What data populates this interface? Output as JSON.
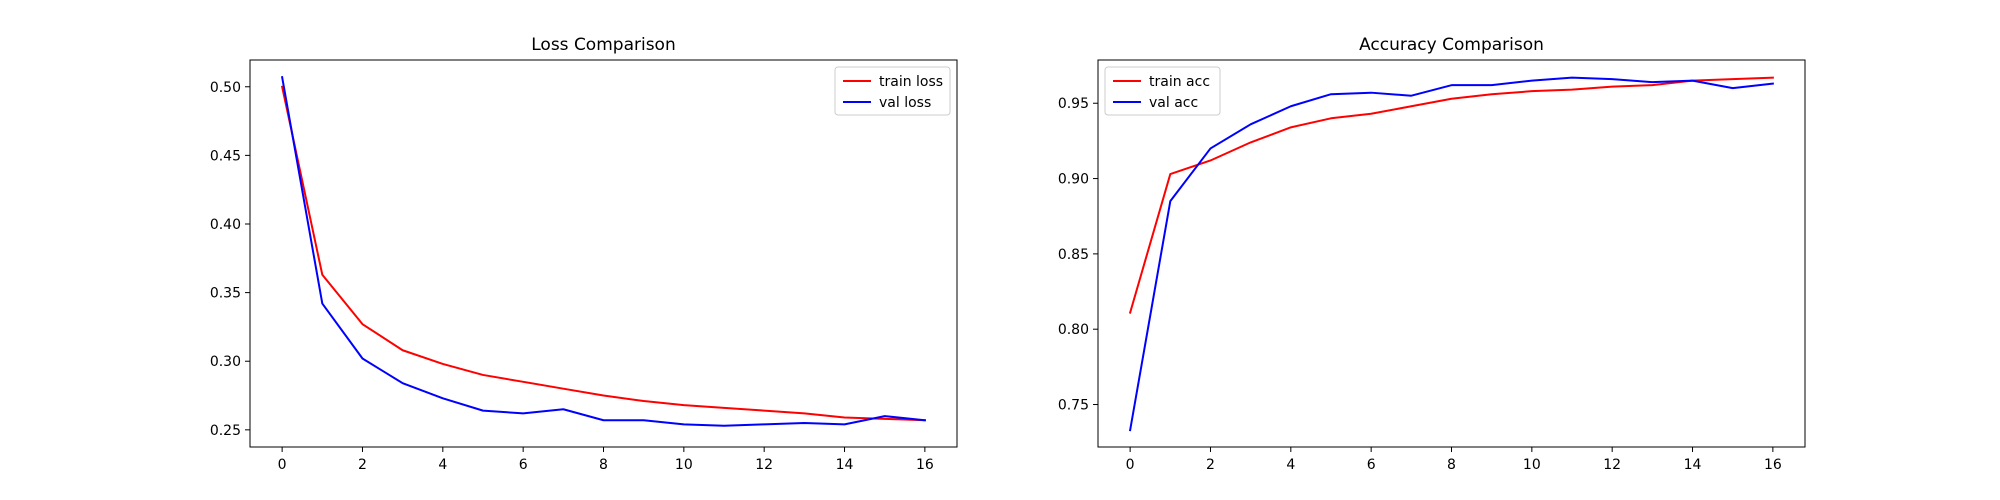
{
  "chart_data": [
    {
      "type": "line",
      "title": "Loss Comparison",
      "xlabel": "",
      "ylabel": "",
      "x": [
        0,
        1,
        2,
        3,
        4,
        5,
        6,
        7,
        8,
        9,
        10,
        11,
        12,
        13,
        14,
        15,
        16
      ],
      "series": [
        {
          "name": "train loss",
          "color": "#ff0000",
          "values": [
            0.5,
            0.363,
            0.327,
            0.308,
            0.298,
            0.29,
            0.285,
            0.28,
            0.275,
            0.271,
            0.268,
            0.266,
            0.264,
            0.262,
            0.259,
            0.258,
            0.257
          ]
        },
        {
          "name": "val loss",
          "color": "#0000ff",
          "values": [
            0.507,
            0.342,
            0.302,
            0.284,
            0.273,
            0.264,
            0.262,
            0.265,
            0.257,
            0.257,
            0.254,
            0.253,
            0.254,
            0.255,
            0.254,
            0.26,
            0.257
          ]
        }
      ],
      "xlim": [
        -0.8,
        16.8
      ],
      "ylim": [
        0.2375,
        0.5195
      ],
      "xticks": [
        0,
        2,
        4,
        6,
        8,
        10,
        12,
        14,
        16
      ],
      "yticks": [
        0.25,
        0.3,
        0.35,
        0.4,
        0.45,
        0.5
      ],
      "ytick_labels": [
        "0.25",
        "0.30",
        "0.35",
        "0.40",
        "0.45",
        "0.50"
      ],
      "legend_loc": "top-right",
      "grid": false
    },
    {
      "type": "line",
      "title": "Accuracy Comparison",
      "xlabel": "",
      "ylabel": "",
      "x": [
        0,
        1,
        2,
        3,
        4,
        5,
        6,
        7,
        8,
        9,
        10,
        11,
        12,
        13,
        14,
        15,
        16
      ],
      "series": [
        {
          "name": "train acc",
          "color": "#ff0000",
          "values": [
            0.811,
            0.903,
            0.912,
            0.924,
            0.934,
            0.94,
            0.943,
            0.948,
            0.953,
            0.956,
            0.958,
            0.959,
            0.961,
            0.962,
            0.965,
            0.966,
            0.967
          ]
        },
        {
          "name": "val acc",
          "color": "#0000ff",
          "values": [
            0.733,
            0.885,
            0.92,
            0.936,
            0.948,
            0.956,
            0.957,
            0.955,
            0.962,
            0.962,
            0.965,
            0.967,
            0.966,
            0.964,
            0.965,
            0.96,
            0.963
          ]
        }
      ],
      "xlim": [
        -0.8,
        16.8
      ],
      "ylim": [
        0.7218,
        0.9787
      ],
      "xticks": [
        0,
        2,
        4,
        6,
        8,
        10,
        12,
        14,
        16
      ],
      "yticks": [
        0.75,
        0.8,
        0.85,
        0.9,
        0.95
      ],
      "ytick_labels": [
        "0.75",
        "0.80",
        "0.85",
        "0.90",
        "0.95"
      ],
      "legend_loc": "top-left",
      "grid": false
    }
  ]
}
